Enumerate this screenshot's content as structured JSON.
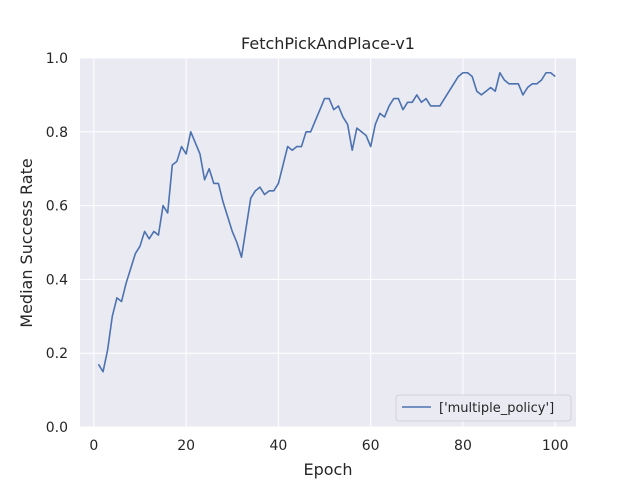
{
  "chart_data": {
    "type": "line",
    "title": "FetchPickAndPlace-v1",
    "xlabel": "Epoch",
    "ylabel": "Median Success Rate",
    "xlim": [
      -3,
      104.5
    ],
    "ylim": [
      0.0,
      1.0
    ],
    "xticks": [
      0,
      20,
      40,
      60,
      80,
      100
    ],
    "xtick_labels": [
      "0",
      "20",
      "40",
      "60",
      "80",
      "100"
    ],
    "yticks": [
      0.0,
      0.2,
      0.4,
      0.6,
      0.8,
      1.0
    ],
    "ytick_labels": [
      "0.0",
      "0.2",
      "0.4",
      "0.6",
      "0.8",
      "1.0"
    ],
    "grid": true,
    "legend_position": "lower-right",
    "colors": {
      "plot_bg": "#eaeaf2",
      "grid": "#ffffff",
      "line": "#4c72b0",
      "text": "#262626"
    },
    "series": [
      {
        "name": "['multiple_policy']",
        "x": [
          1,
          2,
          3,
          4,
          5,
          6,
          7,
          8,
          9,
          10,
          11,
          12,
          13,
          14,
          15,
          16,
          17,
          18,
          19,
          20,
          21,
          22,
          23,
          24,
          25,
          26,
          27,
          28,
          29,
          30,
          31,
          32,
          33,
          34,
          35,
          36,
          37,
          38,
          39,
          40,
          41,
          42,
          43,
          44,
          45,
          46,
          47,
          48,
          49,
          50,
          51,
          52,
          53,
          54,
          55,
          56,
          57,
          58,
          59,
          60,
          61,
          62,
          63,
          64,
          65,
          66,
          67,
          68,
          69,
          70,
          71,
          72,
          73,
          74,
          75,
          76,
          77,
          78,
          79,
          80,
          81,
          82,
          83,
          84,
          85,
          86,
          87,
          88,
          89,
          90,
          91,
          92,
          93,
          94,
          95,
          96,
          97,
          98,
          99,
          100
        ],
        "values": [
          0.17,
          0.15,
          0.21,
          0.3,
          0.35,
          0.34,
          0.39,
          0.43,
          0.47,
          0.49,
          0.53,
          0.51,
          0.53,
          0.52,
          0.6,
          0.58,
          0.71,
          0.72,
          0.76,
          0.74,
          0.8,
          0.77,
          0.74,
          0.67,
          0.7,
          0.66,
          0.66,
          0.61,
          0.57,
          0.53,
          0.5,
          0.46,
          0.54,
          0.62,
          0.64,
          0.65,
          0.63,
          0.64,
          0.64,
          0.66,
          0.71,
          0.76,
          0.75,
          0.76,
          0.76,
          0.8,
          0.8,
          0.83,
          0.86,
          0.89,
          0.89,
          0.86,
          0.87,
          0.84,
          0.82,
          0.75,
          0.81,
          0.8,
          0.79,
          0.76,
          0.82,
          0.85,
          0.84,
          0.87,
          0.89,
          0.89,
          0.86,
          0.88,
          0.88,
          0.9,
          0.88,
          0.89,
          0.87,
          0.87,
          0.87,
          0.89,
          0.91,
          0.93,
          0.95,
          0.96,
          0.96,
          0.95,
          0.91,
          0.9,
          0.91,
          0.92,
          0.91,
          0.96,
          0.94,
          0.93,
          0.93,
          0.93,
          0.9,
          0.92,
          0.93,
          0.93,
          0.94,
          0.96,
          0.96,
          0.95
        ]
      }
    ]
  }
}
